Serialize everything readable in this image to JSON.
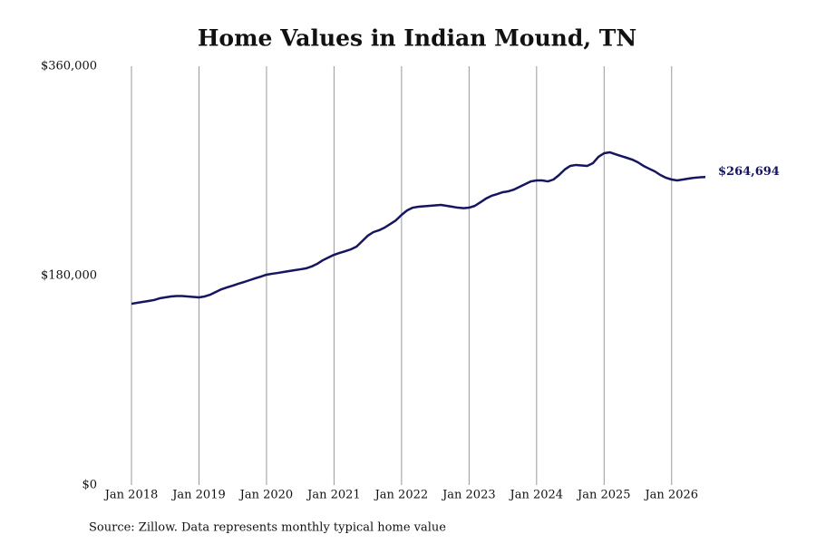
{
  "chart_data": {
    "type": "line",
    "title": "Home Values in Indian Mound, TN",
    "source": "Source: Zillow. Data represents monthly typical home value",
    "color": "#161660",
    "grid": true,
    "x": [
      "2018-01",
      "2018-02",
      "2018-03",
      "2018-04",
      "2018-05",
      "2018-06",
      "2018-07",
      "2018-08",
      "2018-09",
      "2018-10",
      "2018-11",
      "2018-12",
      "2019-01",
      "2019-02",
      "2019-03",
      "2019-04",
      "2019-05",
      "2019-06",
      "2019-07",
      "2019-08",
      "2019-09",
      "2019-10",
      "2019-11",
      "2019-12",
      "2020-01",
      "2020-02",
      "2020-03",
      "2020-04",
      "2020-05",
      "2020-06",
      "2020-07",
      "2020-08",
      "2020-09",
      "2020-10",
      "2020-11",
      "2020-12",
      "2021-01",
      "2021-02",
      "2021-03",
      "2021-04",
      "2021-05",
      "2021-06",
      "2021-07",
      "2021-08",
      "2021-09",
      "2021-10",
      "2021-11",
      "2021-12",
      "2022-01",
      "2022-02",
      "2022-03",
      "2022-04",
      "2022-05",
      "2022-06",
      "2022-07",
      "2022-08",
      "2022-09",
      "2022-10",
      "2022-11",
      "2022-12",
      "2023-01",
      "2023-02",
      "2023-03",
      "2023-04",
      "2023-05",
      "2023-06",
      "2023-07",
      "2023-08",
      "2023-09",
      "2023-10",
      "2023-11",
      "2023-12",
      "2024-01",
      "2024-02",
      "2024-03",
      "2024-04",
      "2024-05",
      "2024-06",
      "2024-07",
      "2024-08",
      "2024-09",
      "2024-10",
      "2024-11",
      "2024-12",
      "2025-01",
      "2025-02",
      "2025-03",
      "2025-04",
      "2025-05",
      "2025-06",
      "2025-07",
      "2025-08",
      "2025-09",
      "2025-10",
      "2025-11",
      "2025-12",
      "2026-01",
      "2026-02",
      "2026-03",
      "2026-04",
      "2026-05",
      "2026-06",
      "2026-07"
    ],
    "values": [
      155800,
      156600,
      157400,
      158200,
      159000,
      160500,
      161300,
      162100,
      162500,
      162500,
      162100,
      161700,
      161300,
      162100,
      163600,
      166000,
      168300,
      169900,
      171400,
      173000,
      174500,
      176100,
      177700,
      179200,
      180800,
      181600,
      182300,
      183100,
      183900,
      184700,
      185400,
      186200,
      187800,
      190100,
      193200,
      195600,
      197900,
      199500,
      201000,
      202600,
      204900,
      209600,
      214300,
      217400,
      219000,
      221300,
      224400,
      227500,
      232200,
      236100,
      238400,
      239200,
      239600,
      240000,
      240400,
      240800,
      240000,
      239200,
      238400,
      238000,
      238400,
      239900,
      243000,
      246200,
      248600,
      250100,
      251700,
      252500,
      254000,
      256400,
      258700,
      261000,
      261800,
      261800,
      261000,
      262600,
      266500,
      271200,
      274300,
      275100,
      274700,
      274300,
      276600,
      282100,
      285200,
      286000,
      284400,
      282800,
      281300,
      279700,
      277400,
      274300,
      271900,
      269600,
      266500,
      264100,
      262600,
      261800,
      262600,
      263400,
      264100,
      264500,
      264694
    ],
    "value_labels": [
      null,
      null,
      null,
      null,
      null,
      null,
      null,
      null,
      null,
      null,
      null,
      null,
      null,
      null,
      null,
      null,
      null,
      null,
      null,
      null,
      null,
      null,
      null,
      null,
      null,
      null,
      null,
      null,
      null,
      null,
      null,
      null,
      null,
      null,
      null,
      null,
      null,
      null,
      null,
      null,
      null,
      null,
      null,
      null,
      null,
      null,
      null,
      null,
      null,
      null,
      null,
      null,
      null,
      null,
      null,
      null,
      null,
      null,
      null,
      null,
      null,
      null,
      null,
      null,
      null,
      null,
      null,
      null,
      null,
      null,
      null,
      null,
      null,
      null,
      null,
      null,
      null,
      null,
      null,
      null,
      null,
      null,
      null,
      null,
      null,
      null,
      null,
      null,
      null,
      null,
      null,
      null,
      null,
      null,
      null,
      null,
      null,
      null,
      null,
      null,
      null,
      null,
      "$264,694"
    ],
    "xlim": [
      "2018-01",
      "2026-07"
    ],
    "xticks": [
      {
        "value": "2018-01",
        "label": "Jan 2018"
      },
      {
        "value": "2019-01",
        "label": "Jan 2019"
      },
      {
        "value": "2020-01",
        "label": "Jan 2020"
      },
      {
        "value": "2021-01",
        "label": "Jan 2021"
      },
      {
        "value": "2022-01",
        "label": "Jan 2022"
      },
      {
        "value": "2023-01",
        "label": "Jan 2023"
      },
      {
        "value": "2024-01",
        "label": "Jan 2024"
      },
      {
        "value": "2025-01",
        "label": "Jan 2025"
      },
      {
        "value": "2026-01",
        "label": "Jan 2026"
      }
    ],
    "ylim": [
      0,
      360000
    ],
    "yticks": [
      {
        "value": 0,
        "label": "$0"
      },
      {
        "value": 180000,
        "label": "$180,000"
      },
      {
        "value": 360000,
        "label": "$360,000"
      }
    ]
  }
}
